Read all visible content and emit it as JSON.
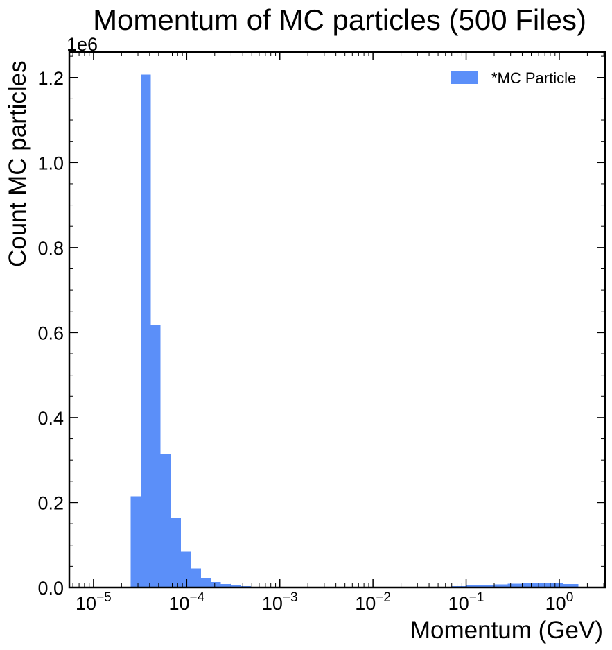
{
  "chart_data": {
    "type": "bar",
    "title": "Momentum of MC particles (500 Files)",
    "xlabel": "Momentum (GeV)",
    "ylabel": "Count MC particles",
    "y_offset_label": "1e6",
    "xscale": "log",
    "xlim": [
      5.5e-06,
      3.1
    ],
    "ylim": [
      0,
      1260000
    ],
    "grid": false,
    "legend_position": "top-right",
    "bar_color": "#5b8ff9",
    "series": [
      {
        "name": "*MC Particle",
        "bin_edges": [
          2.5e-05,
          3.2e-05,
          4.1e-05,
          5.25e-05,
          6.75e-05,
          8.65e-05,
          0.000111,
          0.000142,
          0.000182,
          0.000233,
          0.0003,
          0.000385,
          0.00049,
          0.00063,
          0.00081,
          0.00103,
          0.025,
          0.035,
          0.05,
          0.07,
          0.1,
          0.14,
          0.2,
          0.28,
          0.4,
          0.56,
          0.8,
          1.1,
          1.6
        ],
        "counts": [
          215000,
          1207000,
          617000,
          313000,
          163000,
          84000,
          45000,
          23000,
          13000,
          8000,
          5000,
          3000,
          2000,
          1500,
          1000,
          500,
          1000,
          1500,
          2000,
          3000,
          4500,
          6000,
          7500,
          9000,
          10500,
          11500,
          11000,
          8500
        ]
      }
    ],
    "x_ticks": [
      {
        "value": 1e-05,
        "base": "10",
        "exp": "−5"
      },
      {
        "value": 0.0001,
        "base": "10",
        "exp": "−4"
      },
      {
        "value": 0.001,
        "base": "10",
        "exp": "−3"
      },
      {
        "value": 0.01,
        "base": "10",
        "exp": "−2"
      },
      {
        "value": 0.1,
        "base": "10",
        "exp": "−1"
      },
      {
        "value": 1,
        "base": "10",
        "exp": "0"
      }
    ],
    "y_ticks": [
      {
        "value": 0,
        "label": "0.0"
      },
      {
        "value": 200000,
        "label": "0.2"
      },
      {
        "value": 400000,
        "label": "0.4"
      },
      {
        "value": 600000,
        "label": "0.6"
      },
      {
        "value": 800000,
        "label": "0.8"
      },
      {
        "value": 1000000,
        "label": "1.0"
      },
      {
        "value": 1200000,
        "label": "1.2"
      }
    ]
  }
}
